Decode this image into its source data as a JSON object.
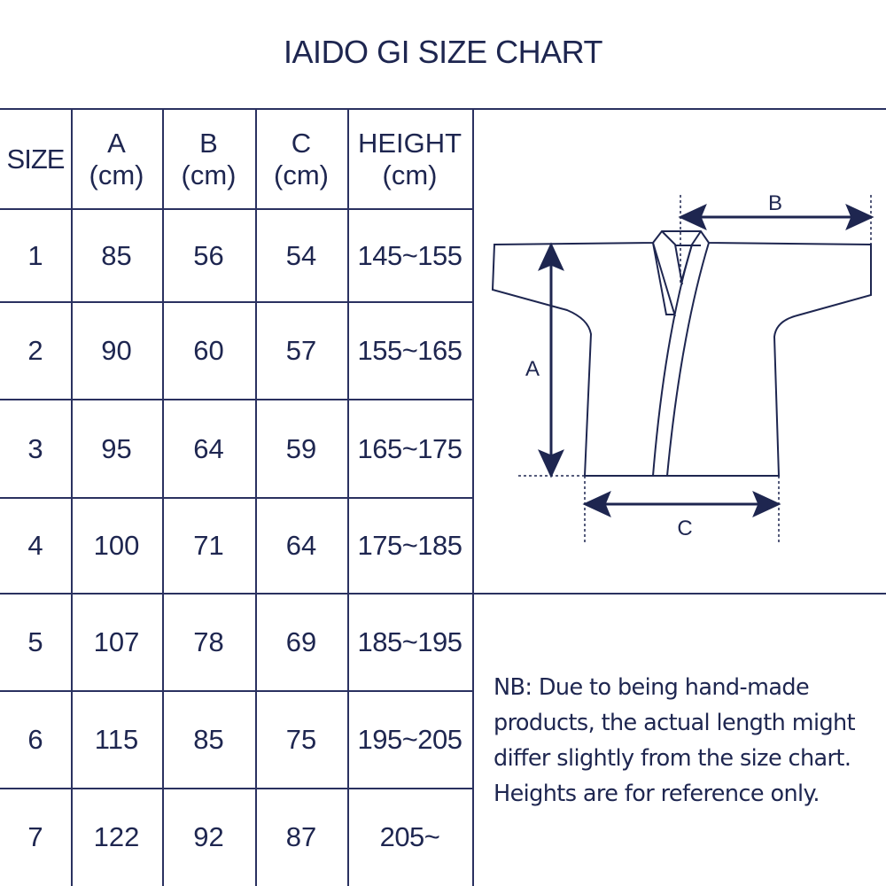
{
  "title": "IAIDO GI SIZE CHART",
  "table": {
    "headers": [
      {
        "line1": "SIZE",
        "line2": ""
      },
      {
        "line1": "A",
        "line2": "(cm)"
      },
      {
        "line1": "B",
        "line2": "(cm)"
      },
      {
        "line1": "C",
        "line2": "(cm)"
      },
      {
        "line1": "HEIGHT",
        "line2": "(cm)"
      }
    ],
    "rows": [
      [
        "1",
        "85",
        "56",
        "54",
        "145~155"
      ],
      [
        "2",
        "90",
        "60",
        "57",
        "155~165"
      ],
      [
        "3",
        "95",
        "64",
        "59",
        "165~175"
      ],
      [
        "4",
        "100",
        "71",
        "64",
        "175~185"
      ],
      [
        "5",
        "107",
        "78",
        "69",
        "185~195"
      ],
      [
        "6",
        "115",
        "85",
        "75",
        "195~205"
      ],
      [
        "7",
        "122",
        "92",
        "87",
        "205~"
      ]
    ]
  },
  "diagram": {
    "label_a": "A",
    "label_b": "B",
    "label_c": "C"
  },
  "note": "NB: Due to being hand-made products, the actual length might differ slightly from the size chart. Heights are for reference only.",
  "colors": {
    "ink": "#1e2650",
    "lines": "#2a3160"
  }
}
